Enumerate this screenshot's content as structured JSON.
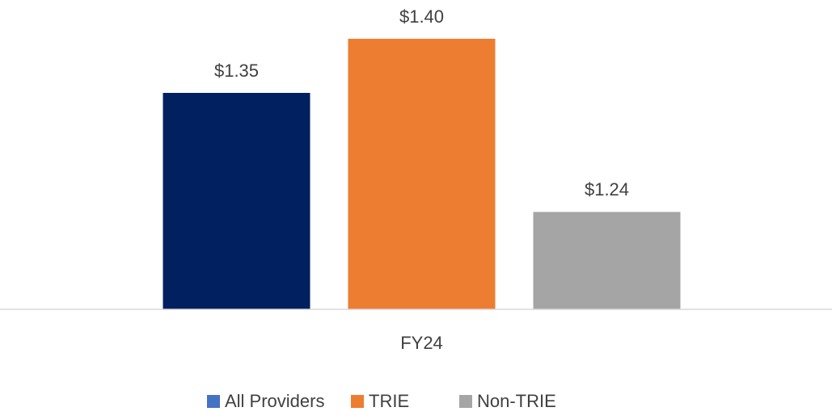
{
  "chart_data": {
    "type": "bar",
    "categories": [
      "FY24"
    ],
    "series": [
      {
        "name": "All Providers",
        "color": "#002060",
        "legend_color": "#4472c4",
        "values": [
          1.35
        ],
        "value_labels": [
          "$1.35"
        ]
      },
      {
        "name": "TRIE",
        "color": "#ed7d31",
        "legend_color": "#ed7d31",
        "values": [
          1.4
        ],
        "value_labels": [
          "$1.40"
        ]
      },
      {
        "name": "Non-TRIE",
        "color": "#a5a5a5",
        "legend_color": "#a5a5a5",
        "values": [
          1.24
        ],
        "value_labels": [
          "$1.24"
        ]
      }
    ],
    "ylim": [
      1.15,
      1.4
    ],
    "legend": "bottom"
  }
}
